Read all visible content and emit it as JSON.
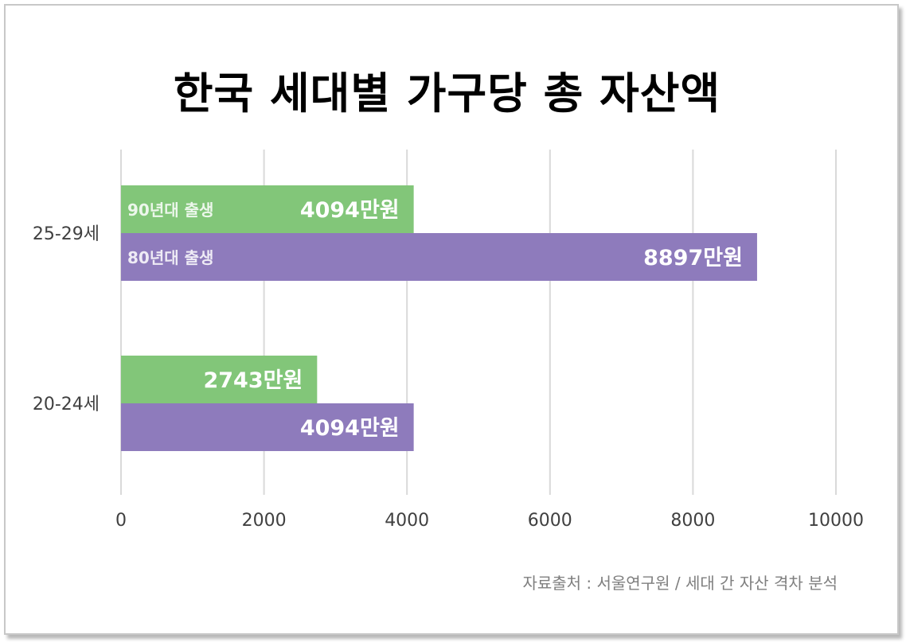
{
  "chart_data": {
    "type": "bar",
    "orientation": "horizontal",
    "title": "한국 세대별 가구당 총 자산액",
    "categories": [
      "25-29세",
      "20-24세"
    ],
    "series": [
      {
        "name": "90년대 출생",
        "color": "#82c679",
        "values": [
          4094,
          2743
        ],
        "data_labels": [
          "4094만원",
          "2743만원"
        ]
      },
      {
        "name": "80년대 출생",
        "color": "#8e7bbc",
        "values": [
          8897,
          4094
        ],
        "data_labels": [
          "8897만원",
          "4094만원"
        ]
      }
    ],
    "xlim": [
      0,
      10000
    ],
    "xticks": [
      0,
      2000,
      4000,
      6000,
      8000,
      10000
    ],
    "xtick_labels": [
      "0",
      "2000",
      "4000",
      "6000",
      "8000",
      "10000"
    ],
    "grid": "vertical",
    "xlabel": "",
    "ylabel": "",
    "source": "자료출처 : 서울연구원 / 세대 간 자산 격차 분석"
  }
}
